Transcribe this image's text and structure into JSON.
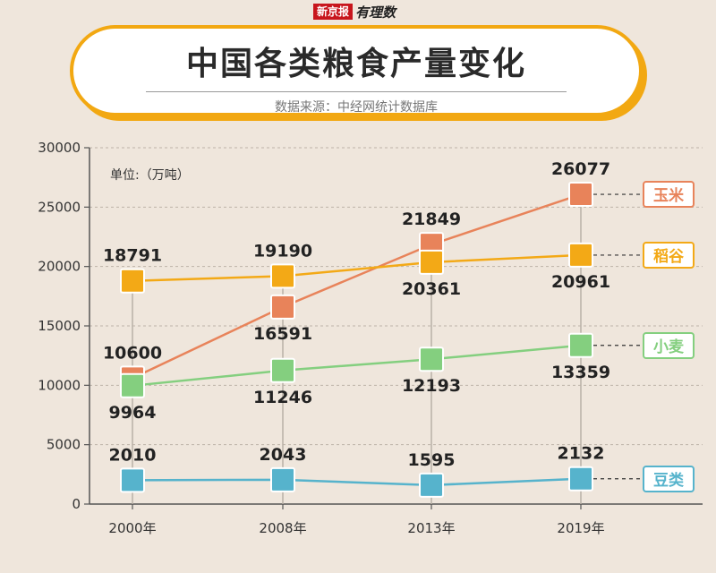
{
  "brand": {
    "name": "新京报",
    "column": "有理数"
  },
  "header": {
    "title": "中国各类粮食产量变化",
    "source": "数据来源：中经网统计数据库"
  },
  "unit_label": "单位:（万吨）",
  "colors": {
    "background": "#efe6dc",
    "accent": "#f2a812",
    "玉米": "#e8835a",
    "稻谷": "#f3a916",
    "小麦": "#84cf7f",
    "豆类": "#56b3cc"
  },
  "chart_data": {
    "type": "line",
    "categories": [
      "2000年",
      "2008年",
      "2013年",
      "2019年"
    ],
    "ylim": [
      0,
      30000
    ],
    "yticks": [
      0,
      5000,
      10000,
      15000,
      20000,
      25000,
      30000
    ],
    "grid": true,
    "legend": "right, at end of each line",
    "series": [
      {
        "name": "玉米",
        "values": [
          10600,
          16591,
          21849,
          26077
        ]
      },
      {
        "name": "稻谷",
        "values": [
          18791,
          19190,
          20361,
          20961
        ]
      },
      {
        "name": "小麦",
        "values": [
          9964,
          11246,
          12193,
          13359
        ]
      },
      {
        "name": "豆类",
        "values": [
          2010,
          2043,
          1595,
          2132
        ]
      }
    ]
  }
}
